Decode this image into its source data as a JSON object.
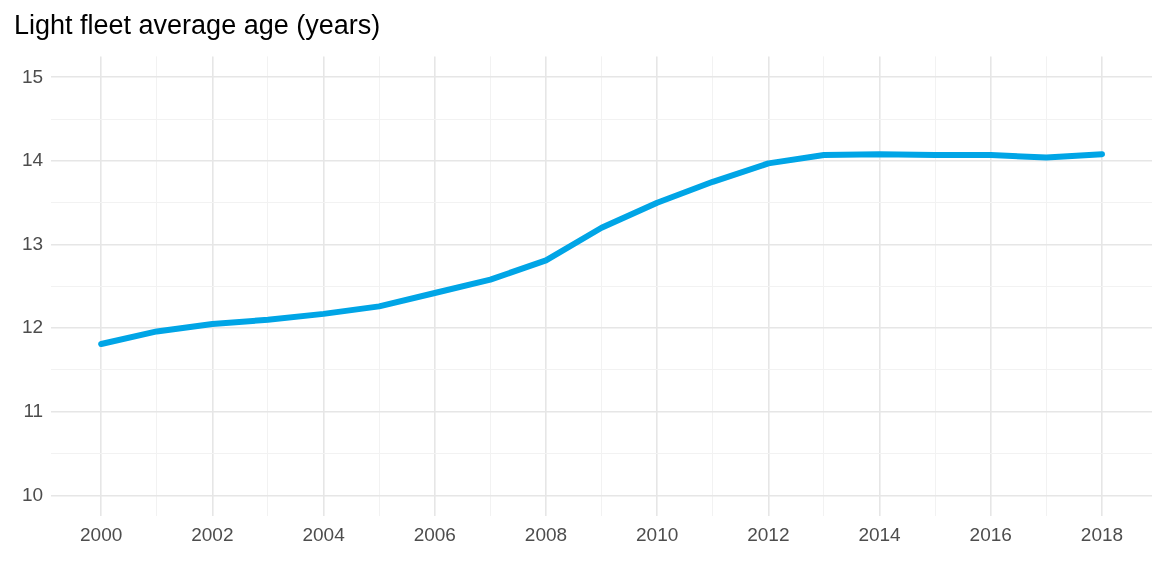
{
  "chart_data": {
    "type": "line",
    "title": "Light fleet average age (years)",
    "x": [
      2000,
      2001,
      2002,
      2003,
      2004,
      2005,
      2006,
      2007,
      2008,
      2009,
      2010,
      2011,
      2012,
      2013,
      2014,
      2015,
      2016,
      2017,
      2018
    ],
    "series": [
      {
        "color": "#00a5e6",
        "values": [
          11.81,
          11.96,
          12.05,
          12.1,
          12.17,
          12.26,
          12.42,
          12.58,
          12.81,
          13.2,
          13.5,
          13.75,
          13.97,
          14.07,
          14.08,
          14.07,
          14.07,
          14.04,
          14.08
        ]
      }
    ],
    "xlim": [
      1999.1,
      2018.9
    ],
    "ylim": [
      9.75,
      15.25
    ],
    "xticks": [
      2000,
      {
        "value": 2001,
        "label": null
      },
      2002,
      {
        "value": 2003,
        "label": null
      },
      2004,
      {
        "value": 2005,
        "label": null
      },
      2006,
      {
        "value": 2007,
        "label": null
      },
      2008,
      {
        "value": 2009,
        "label": null
      },
      2010,
      {
        "value": 2011,
        "label": null
      },
      2012,
      {
        "value": 2013,
        "label": null
      },
      2014,
      {
        "value": 2015,
        "label": null
      },
      2016,
      {
        "value": 2017,
        "label": null
      },
      2018
    ],
    "yticks": [
      10,
      {
        "value": 10.5,
        "label": null
      },
      11,
      {
        "value": 11.5,
        "label": null
      },
      12,
      {
        "value": 12.5,
        "label": null
      },
      13,
      {
        "value": 13.5,
        "label": null
      },
      14,
      {
        "value": 14.5,
        "label": null
      },
      15
    ],
    "grid": true,
    "legend": false,
    "marker": "none",
    "line_style": "solid"
  }
}
